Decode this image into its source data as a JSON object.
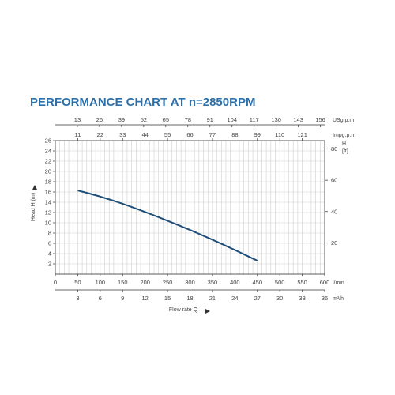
{
  "chart_data": {
    "type": "line",
    "title": "PERFORMANCE CHART AT n=2850RPM",
    "ylabel": "Head H (m)",
    "xlabel": "Flow rate Q",
    "primary_x": {
      "unit": "l/min",
      "range": [
        0,
        600
      ],
      "ticks": [
        "0",
        "50",
        "100",
        "150",
        "200",
        "250",
        "300",
        "350",
        "400",
        "450",
        "500",
        "550",
        "600"
      ]
    },
    "m3h_x": {
      "unit": "m³/h",
      "range": [
        0,
        36
      ],
      "ticks": [
        "3",
        "6",
        "9",
        "12",
        "15",
        "18",
        "21",
        "24",
        "27",
        "30",
        "33",
        "36"
      ]
    },
    "usgpm_x": {
      "unit": "USg.p.m",
      "ticks": [
        "13",
        "26",
        "39",
        "52",
        "65",
        "78",
        "91",
        "104",
        "117",
        "130",
        "143",
        "156"
      ]
    },
    "impgpm_x": {
      "unit": "Impg.p.m",
      "ticks": [
        "11",
        "22",
        "33",
        "44",
        "55",
        "66",
        "77",
        "88",
        "99",
        "110",
        "121"
      ]
    },
    "left_y": {
      "range": [
        0,
        26
      ],
      "ticks": [
        "2",
        "4",
        "6",
        "8",
        "10",
        "12",
        "14",
        "16",
        "18",
        "20",
        "22",
        "24",
        "26"
      ]
    },
    "right_y": {
      "unit": "H\n[ft]",
      "unit_line1": "H",
      "unit_line2": "[ft]",
      "ticks": [
        "20",
        "40",
        "60",
        "80"
      ]
    },
    "series": [
      {
        "color": "#1f4e79",
        "x": [
          50,
          100,
          150,
          200,
          250,
          300,
          350,
          400,
          450
        ],
        "y": [
          16.3,
          15.1,
          13.7,
          12.1,
          10.4,
          8.6,
          6.7,
          4.7,
          2.6
        ]
      }
    ]
  }
}
